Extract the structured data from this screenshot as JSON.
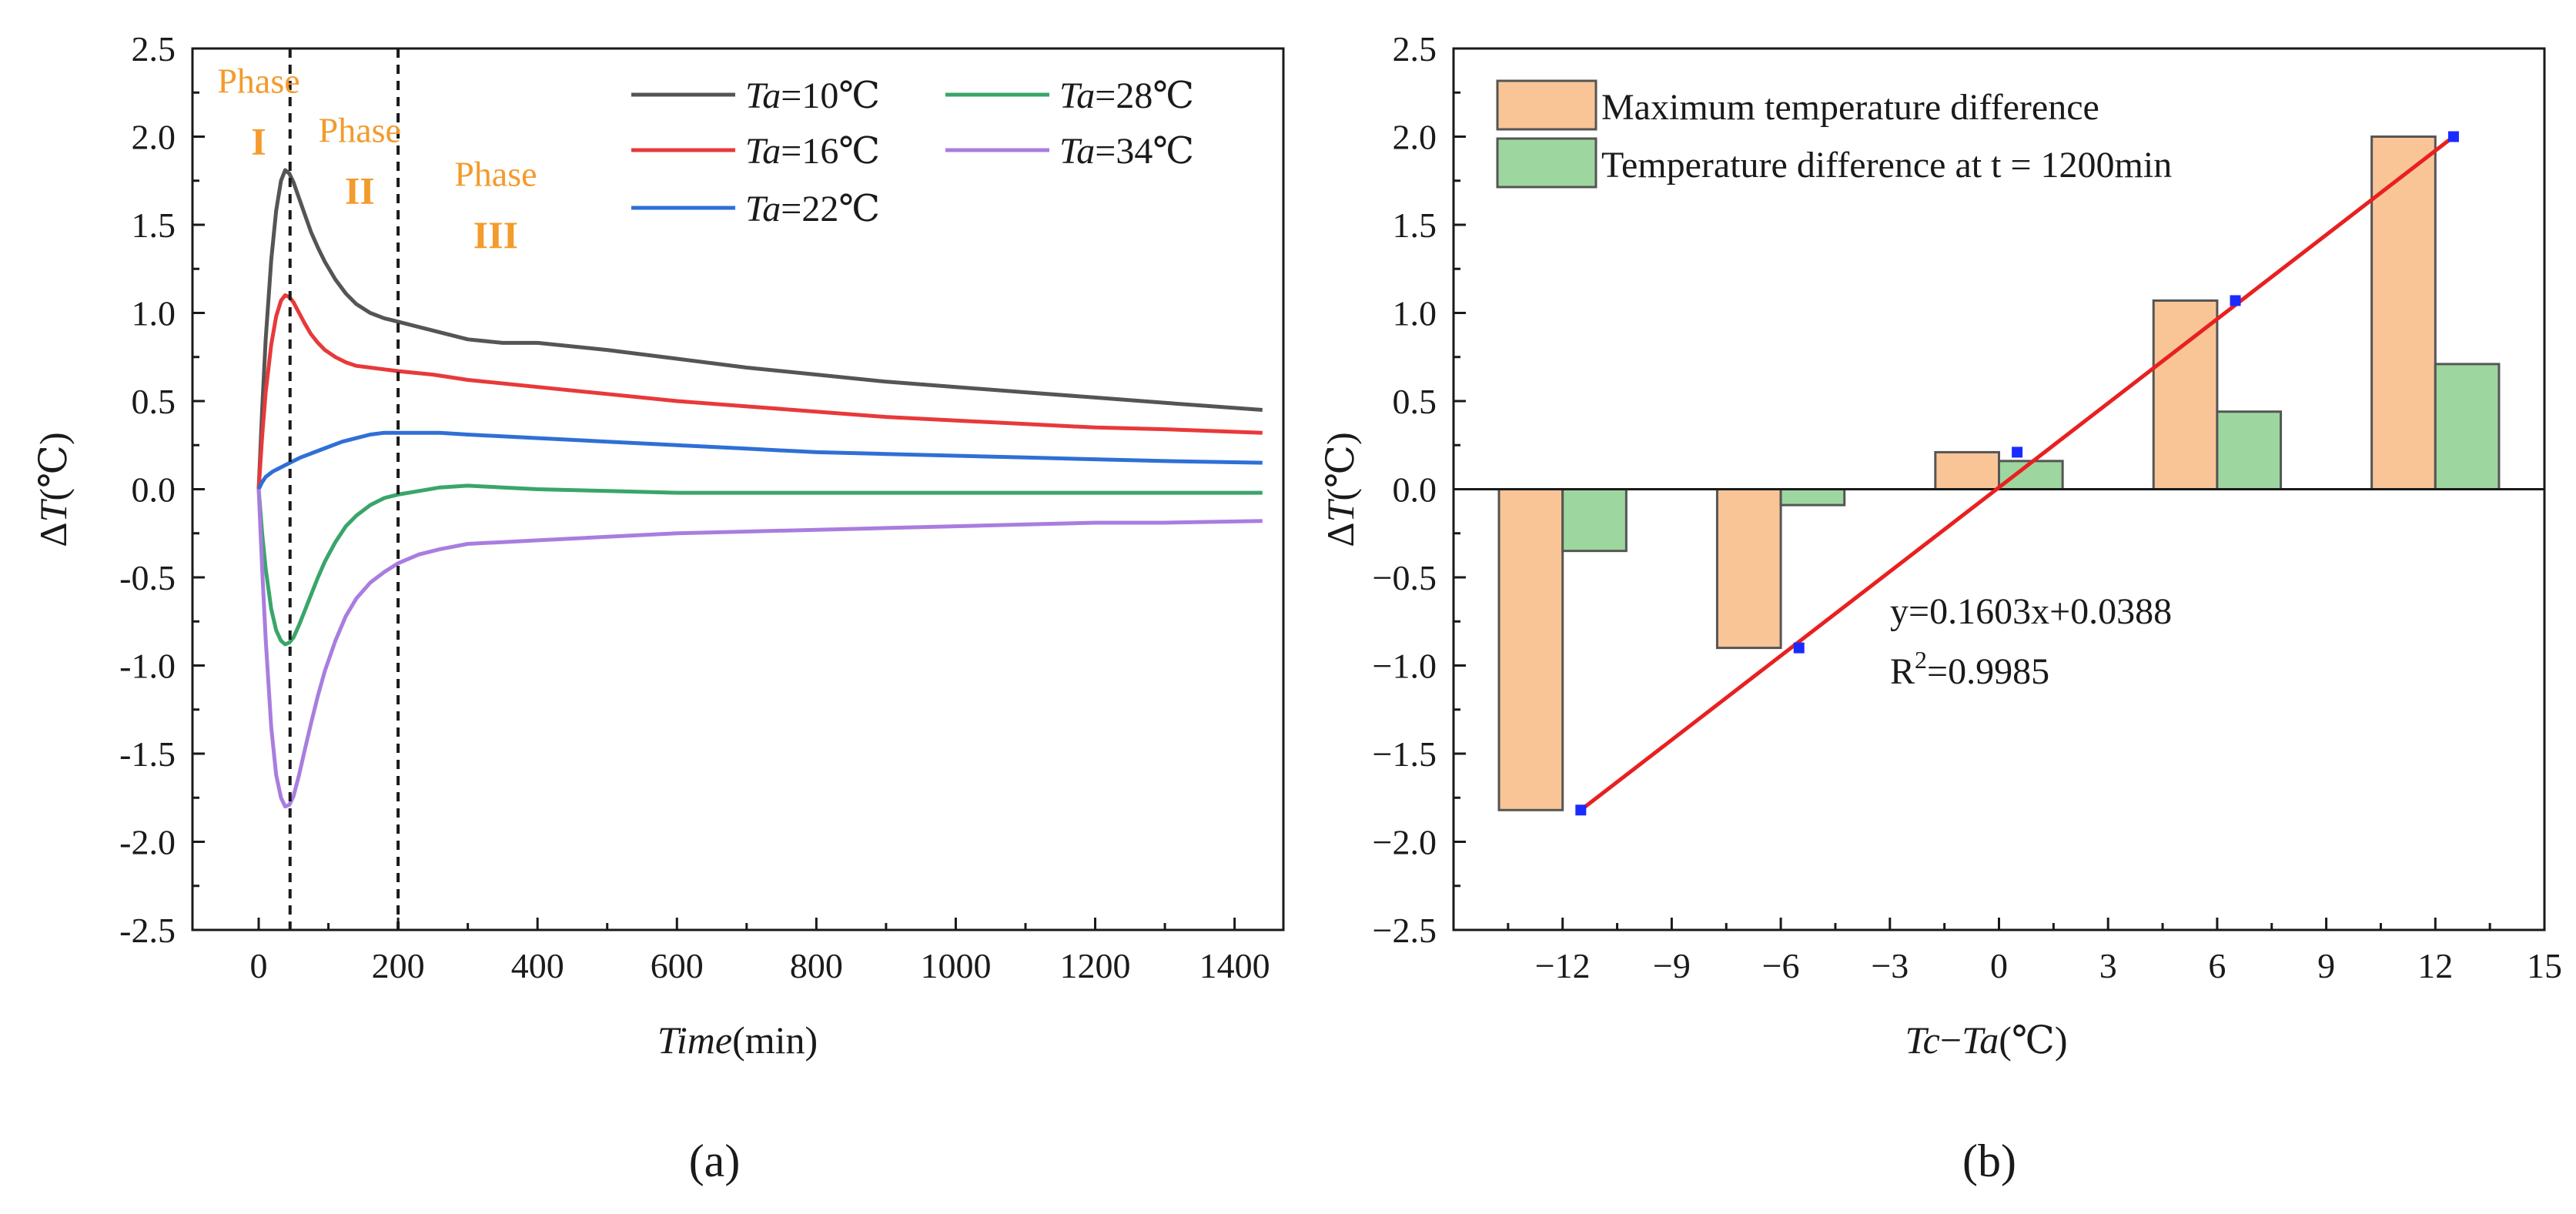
{
  "chart_data": [
    {
      "type": "line",
      "panel": "a",
      "caption": "(a)",
      "xlabel_italic": "Time",
      "xlabel_unit": "(min)",
      "ylabel_prefix": "Δ",
      "ylabel_italic": "T",
      "ylabel_unit": "(℃)",
      "xlim": [
        -95,
        1470
      ],
      "ylim": [
        -2.5,
        2.5
      ],
      "xticks": [
        0,
        200,
        400,
        600,
        800,
        1000,
        1200,
        1400
      ],
      "xtick_labels": [
        "0",
        "200",
        "400",
        "600",
        "800",
        "1000",
        "1200",
        "1400"
      ],
      "yticks": [
        -2.5,
        -2.0,
        -1.5,
        -1.0,
        -0.5,
        0.0,
        0.5,
        1.0,
        1.5,
        2.0,
        2.5
      ],
      "ytick_labels": [
        "-2.5",
        "-2.0",
        "-1.5",
        "-1.0",
        "-0.5",
        "0.0",
        "0.5",
        "1.0",
        "1.5",
        "2.0",
        "2.5"
      ],
      "vlines": [
        45,
        200
      ],
      "phases": [
        {
          "word": "Phase",
          "roman": "I",
          "x": 0,
          "y": 2.25,
          "roman_y": 1.9
        },
        {
          "word": "Phase",
          "roman": "II",
          "x": 145,
          "y": 1.97,
          "roman_y": 1.62
        },
        {
          "word": "Phase",
          "roman": "III",
          "x": 340,
          "y": 1.72,
          "roman_y": 1.37
        }
      ],
      "series": [
        {
          "name_italic": "Ta",
          "name_rest": "=10℃",
          "color": "#555555",
          "x": [
            0,
            5,
            10,
            18,
            25,
            32,
            38,
            44,
            50,
            58,
            66,
            75,
            85,
            95,
            110,
            125,
            140,
            160,
            180,
            200,
            230,
            260,
            300,
            350,
            400,
            450,
            500,
            600,
            700,
            800,
            900,
            1000,
            1100,
            1200,
            1300,
            1440
          ],
          "y": [
            0.0,
            0.45,
            0.85,
            1.3,
            1.58,
            1.75,
            1.81,
            1.79,
            1.74,
            1.65,
            1.56,
            1.46,
            1.37,
            1.29,
            1.19,
            1.11,
            1.05,
            1.0,
            0.97,
            0.95,
            0.92,
            0.89,
            0.85,
            0.83,
            0.83,
            0.81,
            0.79,
            0.74,
            0.69,
            0.65,
            0.61,
            0.58,
            0.55,
            0.52,
            0.49,
            0.45
          ]
        },
        {
          "name_italic": "Ta",
          "name_rest": "=16℃",
          "color": "#e8393a",
          "x": [
            0,
            5,
            10,
            18,
            25,
            32,
            38,
            44,
            50,
            58,
            66,
            75,
            85,
            95,
            110,
            125,
            140,
            160,
            180,
            200,
            250,
            300,
            400,
            500,
            600,
            700,
            800,
            900,
            1000,
            1100,
            1200,
            1300,
            1440
          ],
          "y": [
            0.0,
            0.3,
            0.55,
            0.82,
            0.98,
            1.07,
            1.1,
            1.09,
            1.06,
            1.0,
            0.94,
            0.88,
            0.83,
            0.79,
            0.75,
            0.72,
            0.7,
            0.69,
            0.68,
            0.67,
            0.65,
            0.62,
            0.58,
            0.54,
            0.5,
            0.47,
            0.44,
            0.41,
            0.39,
            0.37,
            0.35,
            0.34,
            0.32
          ]
        },
        {
          "name_italic": "Ta",
          "name_rest": "=22℃",
          "color": "#2f6fd6",
          "x": [
            0,
            5,
            10,
            20,
            40,
            60,
            80,
            100,
            120,
            140,
            160,
            180,
            200,
            230,
            260,
            300,
            400,
            500,
            600,
            700,
            800,
            900,
            1000,
            1100,
            1200,
            1300,
            1440
          ],
          "y": [
            0.0,
            0.04,
            0.07,
            0.1,
            0.14,
            0.18,
            0.21,
            0.24,
            0.27,
            0.29,
            0.31,
            0.32,
            0.32,
            0.32,
            0.32,
            0.31,
            0.29,
            0.27,
            0.25,
            0.23,
            0.21,
            0.2,
            0.19,
            0.18,
            0.17,
            0.16,
            0.15
          ]
        },
        {
          "name_italic": "Ta",
          "name_rest": "=28℃",
          "color": "#3aa56a",
          "x": [
            0,
            5,
            10,
            18,
            25,
            32,
            38,
            44,
            50,
            58,
            66,
            75,
            85,
            95,
            110,
            125,
            140,
            160,
            180,
            200,
            230,
            260,
            300,
            350,
            400,
            500,
            600,
            700,
            800,
            900,
            1000,
            1100,
            1200,
            1300,
            1440
          ],
          "y": [
            0.0,
            -0.25,
            -0.45,
            -0.68,
            -0.8,
            -0.86,
            -0.88,
            -0.87,
            -0.84,
            -0.77,
            -0.69,
            -0.6,
            -0.5,
            -0.41,
            -0.3,
            -0.21,
            -0.15,
            -0.09,
            -0.05,
            -0.03,
            -0.01,
            0.01,
            0.02,
            0.01,
            0.0,
            -0.01,
            -0.02,
            -0.02,
            -0.02,
            -0.02,
            -0.02,
            -0.02,
            -0.02,
            -0.02,
            -0.02
          ]
        },
        {
          "name_italic": "Ta",
          "name_rest": "=34℃",
          "color": "#a97ddf",
          "x": [
            0,
            5,
            10,
            18,
            25,
            32,
            38,
            44,
            50,
            58,
            66,
            75,
            85,
            95,
            110,
            125,
            140,
            160,
            180,
            200,
            230,
            260,
            300,
            350,
            400,
            500,
            600,
            700,
            800,
            900,
            1000,
            1100,
            1200,
            1300,
            1440
          ],
          "y": [
            0.0,
            -0.45,
            -0.85,
            -1.35,
            -1.62,
            -1.75,
            -1.8,
            -1.79,
            -1.74,
            -1.62,
            -1.48,
            -1.33,
            -1.17,
            -1.03,
            -0.86,
            -0.72,
            -0.62,
            -0.53,
            -0.47,
            -0.42,
            -0.37,
            -0.34,
            -0.31,
            -0.3,
            -0.29,
            -0.27,
            -0.25,
            -0.24,
            -0.23,
            -0.22,
            -0.21,
            -0.2,
            -0.19,
            -0.19,
            -0.18
          ]
        }
      ]
    },
    {
      "type": "bar",
      "panel": "b",
      "caption": "(b)",
      "xlabel_italic_1": "Tc",
      "xlabel_mid": "−",
      "xlabel_italic_2": "Ta",
      "xlabel_unit": "(℃)",
      "ylabel_prefix": "Δ",
      "ylabel_italic": "T",
      "ylabel_unit": "(℃)",
      "xlim": [
        -15,
        15
      ],
      "ylim": [
        -2.5,
        2.5
      ],
      "xticks": [
        -12,
        -9,
        -6,
        -3,
        0,
        3,
        6,
        9,
        12,
        15
      ],
      "xtick_labels": [
        "−12",
        "−9",
        "−6",
        "−3",
        "0",
        "3",
        "6",
        "9",
        "12",
        "15"
      ],
      "yticks": [
        -2.5,
        -2.0,
        -1.5,
        -1.0,
        -0.5,
        0.0,
        0.5,
        1.0,
        1.5,
        2.0,
        2.5
      ],
      "ytick_labels": [
        "−2.5",
        "−2.0",
        "−1.5",
        "−1.0",
        "−0.5",
        "0.0",
        "0.5",
        "1.0",
        "1.5",
        "2.0",
        "2.5"
      ],
      "categories": [
        -12,
        -6,
        0,
        6,
        12
      ],
      "series": [
        {
          "name": "Maximum temperature difference",
          "color": "#f9c597",
          "values": [
            -1.82,
            -0.9,
            0.21,
            1.07,
            2.0
          ]
        },
        {
          "name": "Temperature difference at t  = 1200min",
          "color": "#9ed69f",
          "values": [
            -0.35,
            -0.09,
            0.16,
            0.44,
            0.71
          ]
        }
      ],
      "fit": {
        "slope": 0.1603,
        "intercept": 0.0388,
        "x_range": [
          -11.5,
          12.5
        ],
        "color": "#e82020",
        "marker_color": "#1a2bff",
        "points_x": [
          -11.5,
          -5.5,
          0.5,
          6.5,
          12.5
        ],
        "points_y": [
          -1.82,
          -0.9,
          0.21,
          1.07,
          2.0
        ]
      },
      "equation": "y=0.1603x+0.0388",
      "r2_prefix": "R",
      "r2_sup": "2",
      "r2_value": "=0.9985"
    }
  ]
}
